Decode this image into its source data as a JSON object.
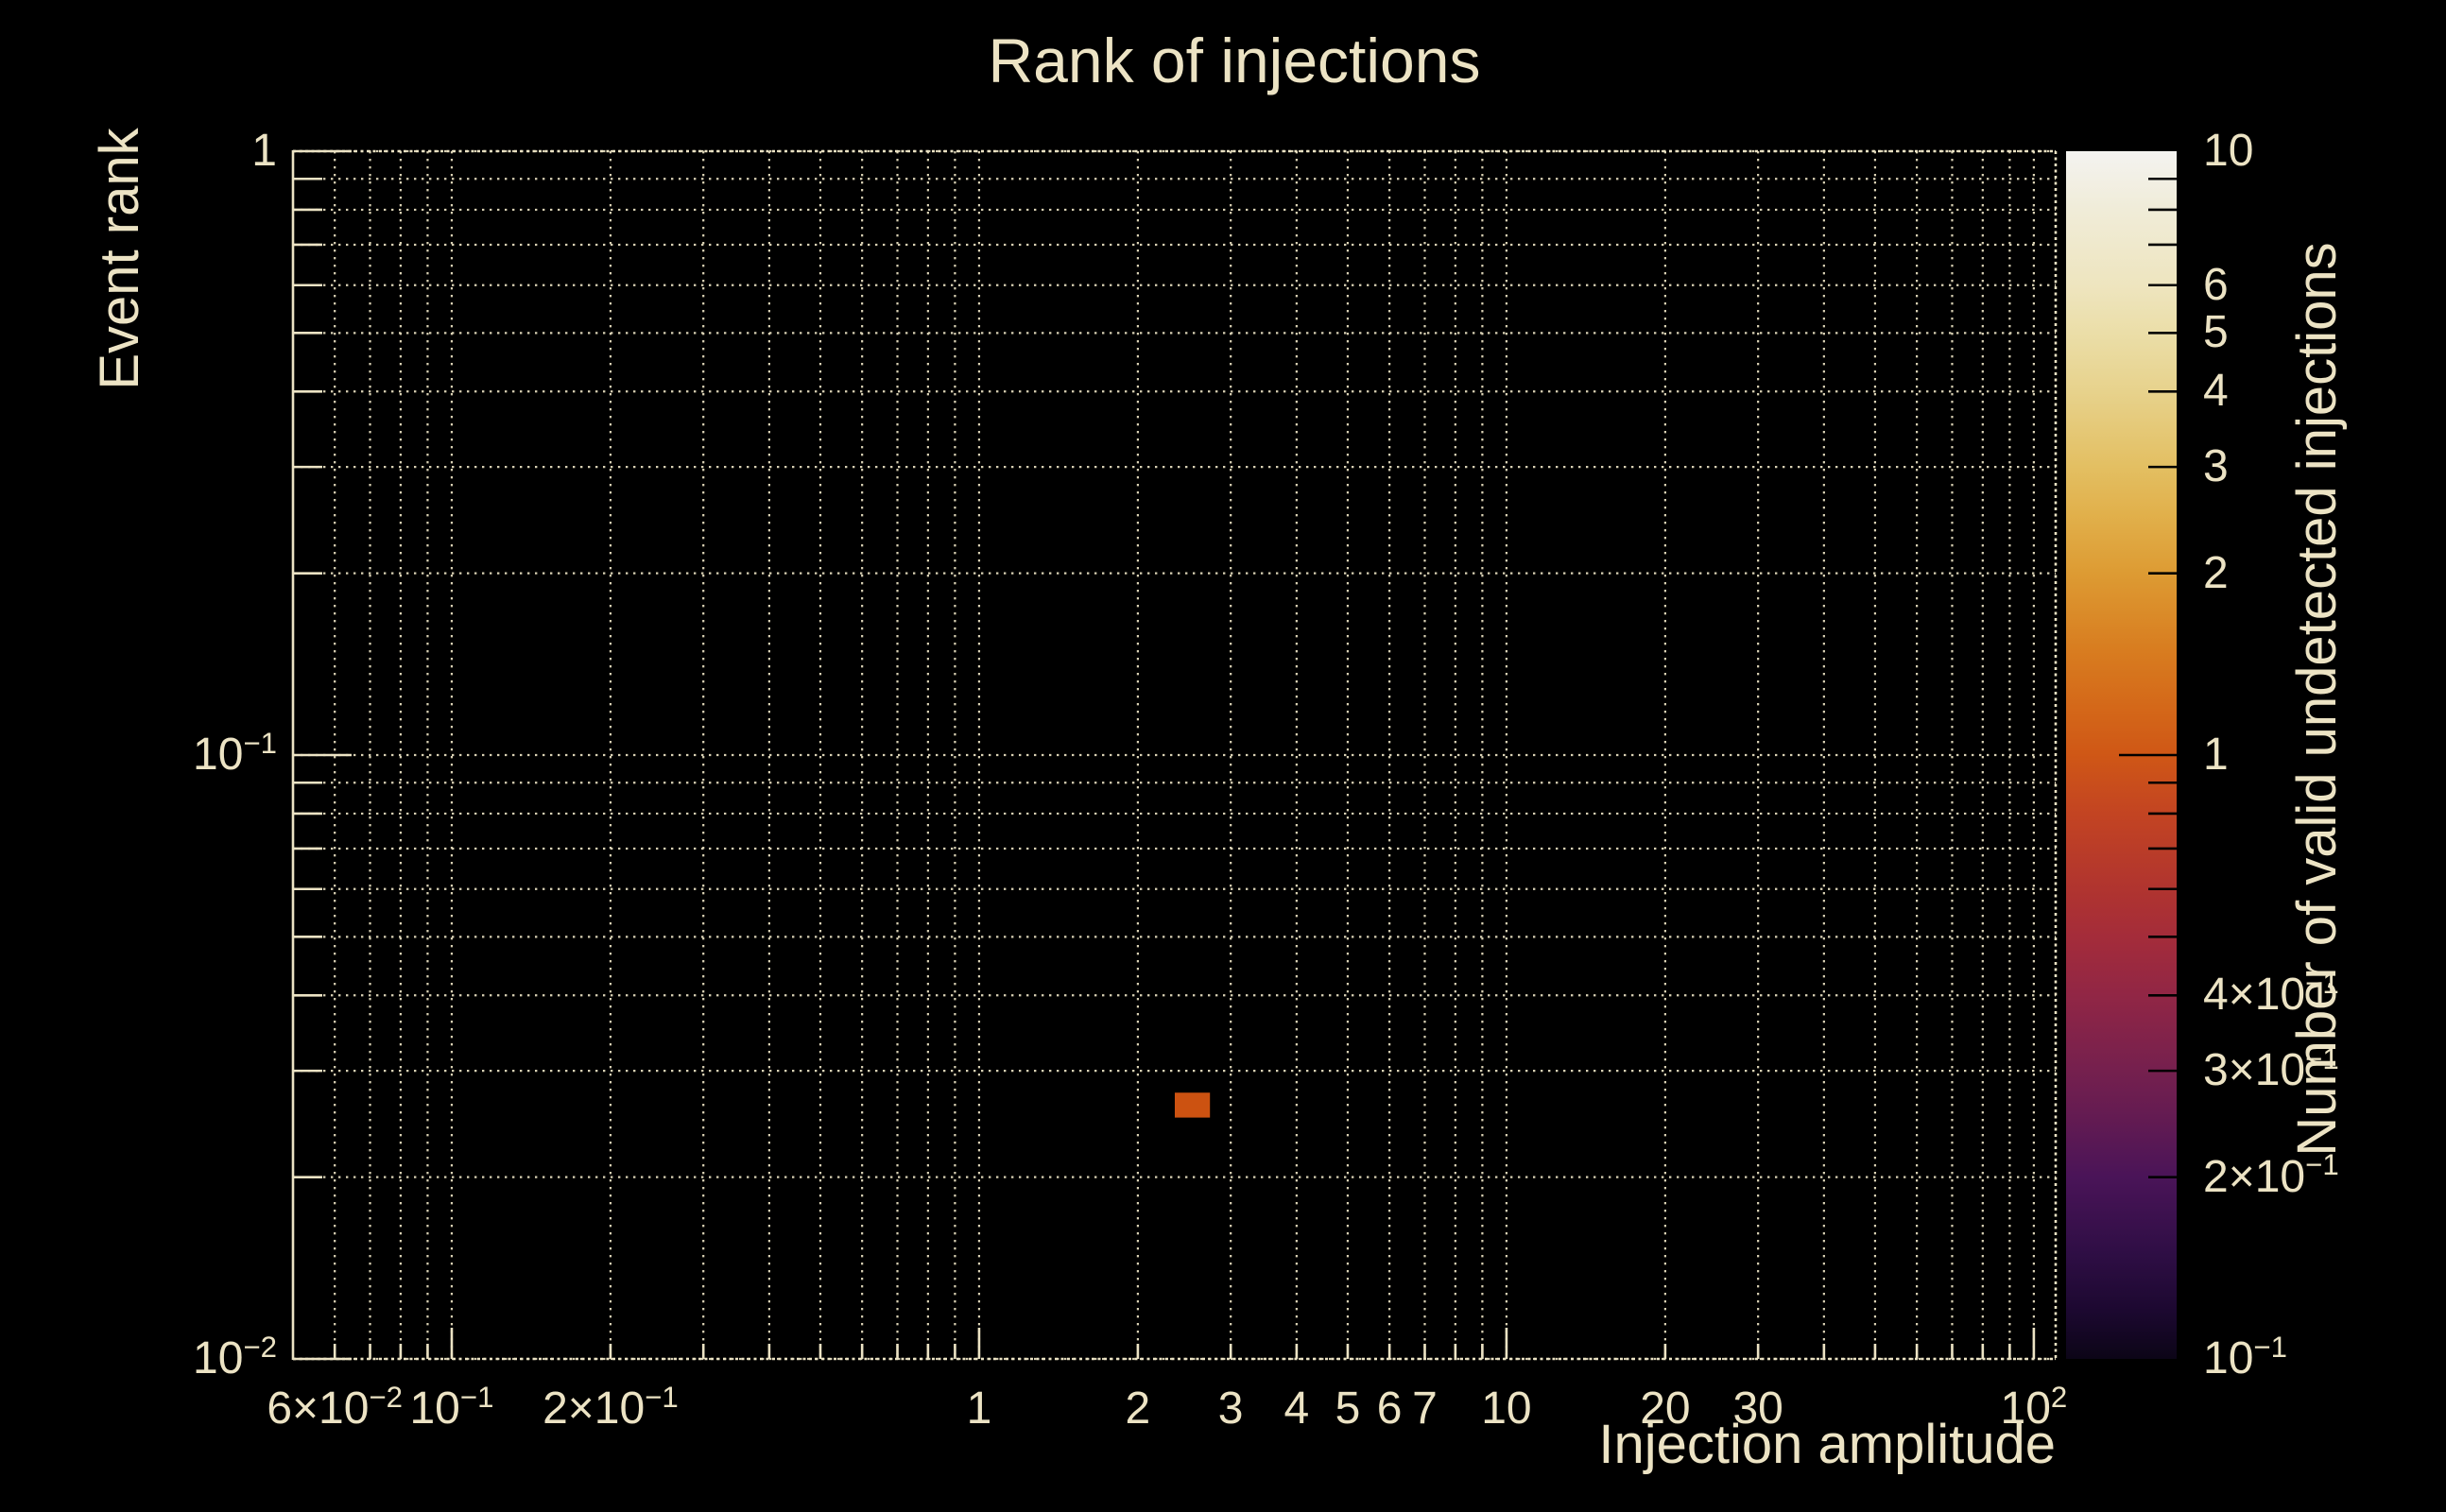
{
  "title": "Rank of injections",
  "colors": {
    "background": "#000000",
    "text": "#ece3c4",
    "grid": "#ece3c4",
    "spine": "#ece3c4",
    "colorbar_tick": "#000000",
    "bin_fill": "#cc5211"
  },
  "chart_data": {
    "type": "heatmap",
    "title": "Rank of injections",
    "xlabel": "Injection amplitude",
    "ylabel": "Event rank",
    "xscale": "log",
    "yscale": "log",
    "xlim": [
      0.05,
      110
    ],
    "ylim": [
      0.01,
      1
    ],
    "grid": true,
    "bins": [
      {
        "x_range": [
          2.35,
          2.74
        ],
        "y_range": [
          0.0251,
          0.0276
        ],
        "count": 1,
        "color": "#cc5211"
      }
    ],
    "x_axis": {
      "label": "Injection amplitude",
      "gridlines": [
        0.06,
        0.07,
        0.08,
        0.09,
        0.1,
        0.2,
        0.3,
        0.4,
        0.5,
        0.6,
        0.7,
        0.8,
        0.9,
        1,
        2,
        3,
        4,
        5,
        6,
        7,
        8,
        9,
        10,
        20,
        30,
        40,
        50,
        60,
        70,
        80,
        90,
        100
      ],
      "major_ticks": [
        0.1,
        1,
        10,
        100
      ],
      "tick_labels": [
        {
          "v": 0.06,
          "base": "6×10",
          "exp": "−2"
        },
        {
          "v": 0.1,
          "base": "10",
          "exp": "−1"
        },
        {
          "v": 0.2,
          "base": "2×10",
          "exp": "−1"
        },
        {
          "v": 1,
          "base": "1"
        },
        {
          "v": 2,
          "base": "2"
        },
        {
          "v": 3,
          "base": "3"
        },
        {
          "v": 4,
          "base": "4"
        },
        {
          "v": 5,
          "base": "5"
        },
        {
          "v": 6,
          "base": "6"
        },
        {
          "v": 7,
          "base": "7"
        },
        {
          "v": 10,
          "base": "10"
        },
        {
          "v": 20,
          "base": "20"
        },
        {
          "v": 30,
          "base": "30"
        },
        {
          "v": 100,
          "base": "10",
          "exp": "2"
        }
      ]
    },
    "y_axis": {
      "label": "Event rank",
      "gridlines": [
        0.01,
        0.02,
        0.03,
        0.04,
        0.05,
        0.06,
        0.07,
        0.08,
        0.09,
        0.1,
        0.2,
        0.3,
        0.4,
        0.5,
        0.6,
        0.7,
        0.8,
        0.9,
        1
      ],
      "major_ticks": [
        0.01,
        0.1,
        1
      ],
      "tick_labels": [
        {
          "v": 1,
          "base": "1"
        },
        {
          "v": 0.1,
          "base": "10",
          "exp": "−1"
        },
        {
          "v": 0.01,
          "base": "10",
          "exp": "−2"
        }
      ]
    },
    "colorbar": {
      "label": "Number of valid undetected injections",
      "scale": "log",
      "min": 0.1,
      "max": 10,
      "minor_ticks": [
        9,
        8,
        7,
        6,
        5,
        4,
        3,
        2,
        0.9,
        0.8,
        0.7,
        0.6,
        0.5,
        0.4,
        0.3,
        0.2
      ],
      "major_ticks": [
        1
      ],
      "tick_labels": [
        {
          "v": 10,
          "base": "10"
        },
        {
          "v": 6,
          "base": "6"
        },
        {
          "v": 5,
          "base": "5"
        },
        {
          "v": 4,
          "base": "4"
        },
        {
          "v": 3,
          "base": "3"
        },
        {
          "v": 2,
          "base": "2"
        },
        {
          "v": 1,
          "base": "1"
        },
        {
          "v": 0.4,
          "base": "4×10",
          "exp": "−1"
        },
        {
          "v": 0.3,
          "base": "3×10",
          "exp": "−1"
        },
        {
          "v": 0.2,
          "base": "2×10",
          "exp": "−1"
        },
        {
          "v": 0.1,
          "base": "10",
          "exp": "−1"
        }
      ],
      "gradient_stops": [
        {
          "v": 10,
          "color": "#f4f3f0"
        },
        {
          "v": 8,
          "color": "#f0ecd8"
        },
        {
          "v": 6,
          "color": "#eee5bf"
        },
        {
          "v": 5,
          "color": "#ebdea8"
        },
        {
          "v": 4,
          "color": "#e7d28c"
        },
        {
          "v": 3,
          "color": "#e3bf62"
        },
        {
          "v": 2.5,
          "color": "#e1b04b"
        },
        {
          "v": 2,
          "color": "#dd9b33"
        },
        {
          "v": 1.5,
          "color": "#d87d20"
        },
        {
          "v": 1.2,
          "color": "#d46819"
        },
        {
          "v": 1,
          "color": "#cf5716"
        },
        {
          "v": 0.8,
          "color": "#c34422"
        },
        {
          "v": 0.6,
          "color": "#b0342f"
        },
        {
          "v": 0.5,
          "color": "#a42c3a"
        },
        {
          "v": 0.4,
          "color": "#912645"
        },
        {
          "v": 0.3,
          "color": "#75204e"
        },
        {
          "v": 0.25,
          "color": "#631b52"
        },
        {
          "v": 0.2,
          "color": "#4a1458"
        },
        {
          "v": 0.15,
          "color": "#2f0e45"
        },
        {
          "v": 0.12,
          "color": "#1c0830"
        },
        {
          "v": 0.1,
          "color": "#0c0517"
        }
      ]
    }
  }
}
